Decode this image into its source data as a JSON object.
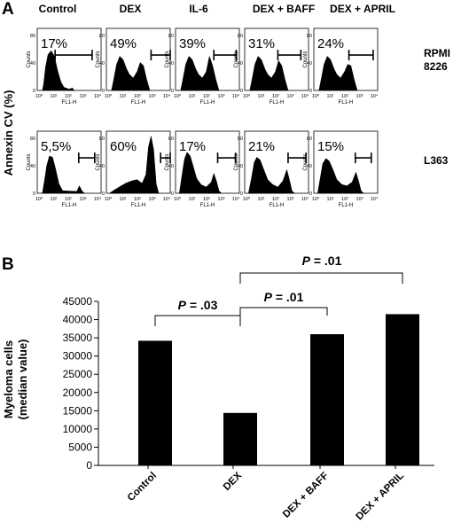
{
  "panel_a": {
    "label": "A",
    "ylabel": "Annexin CV (%)",
    "columns": [
      "Control",
      "DEX",
      "IL-6",
      "DEX + BAFF",
      "DEX + APRIL"
    ],
    "row_labels": [
      [
        "RPMI",
        "8226"
      ],
      [
        "L363"
      ]
    ],
    "x_axis_label": "FL1-H",
    "y_axis_label": "Counts",
    "x_ticks": [
      "10⁰",
      "10¹",
      "10²",
      "10³",
      "10⁴"
    ],
    "y_ticks": [
      "0",
      "40",
      "80"
    ],
    "percentages": [
      [
        "17%",
        "49%",
        "39%",
        "31%",
        "24%"
      ],
      [
        "5,5%",
        "60%",
        "17%",
        "21%",
        "15%"
      ]
    ]
  },
  "chart_data": {
    "type": "bar",
    "label": "B",
    "categories": [
      "Control",
      "DEX",
      "DEX + BAFF",
      "DEX + APRIL"
    ],
    "values": [
      34200,
      14400,
      36000,
      41500
    ],
    "ylabel_lines": [
      "Myeloma cells",
      "(median value)"
    ],
    "ylim": [
      0,
      45000
    ],
    "yticks": [
      0,
      5000,
      10000,
      15000,
      20000,
      25000,
      30000,
      35000,
      40000,
      45000
    ],
    "bar_color": "#000000",
    "grid": false,
    "significance": [
      {
        "from": 0,
        "to": 1,
        "p_label": "P",
        "p_value": " = .03"
      },
      {
        "from": 1,
        "to": 2,
        "p_label": "P",
        "p_value": " = .01"
      },
      {
        "from": 1,
        "to": 3,
        "p_label": "P",
        "p_value": " = .01"
      }
    ]
  }
}
